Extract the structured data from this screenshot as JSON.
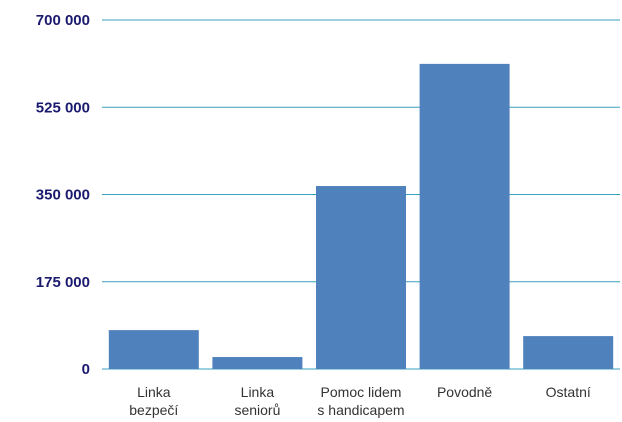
{
  "chart_data": {
    "type": "bar",
    "categories": [
      [
        "Linka",
        "bezpečí"
      ],
      [
        "Linka",
        "seniorů"
      ],
      [
        "Pomoc lidem",
        "s handicapem"
      ],
      [
        "Povodně"
      ],
      [
        "Ostatní"
      ]
    ],
    "values": [
      78000,
      24000,
      367000,
      612000,
      66000
    ],
    "y_tick_labels": [
      "0",
      "175 000",
      "350 000",
      "525 000",
      "700 000"
    ],
    "y_ticks": [
      0,
      175000,
      350000,
      525000,
      700000
    ],
    "ylim": [
      0,
      700000
    ],
    "grid": true,
    "colors": {
      "bar": "#4f81bd",
      "gridline": "#3aa0c0",
      "ytick_text": "#1a1a6e",
      "xtick_text": "#333333"
    }
  }
}
